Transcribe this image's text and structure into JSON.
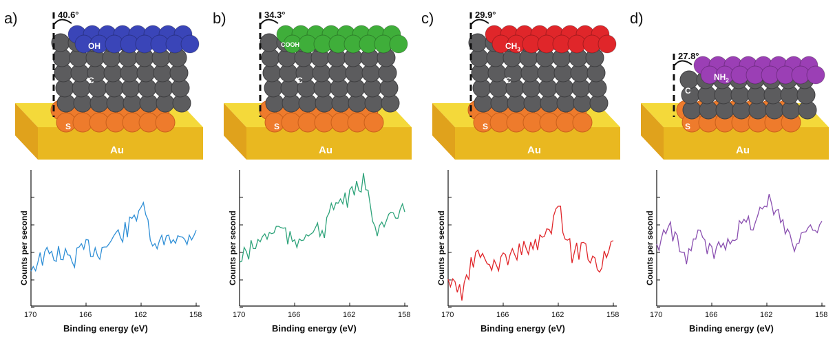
{
  "panels": [
    {
      "letter": "a)",
      "angle": "40.6°",
      "group": "OH",
      "carbon": "C",
      "sulfur": "S",
      "substrate": "Au",
      "color": "#3a45b8",
      "rows": 1,
      "ylabel": "Counts per second",
      "xlabel": "Binding energy (eV)",
      "ticks": [
        "170",
        "166",
        "162",
        "158"
      ]
    },
    {
      "letter": "b)",
      "angle": "34.3°",
      "group": "COOH",
      "carbon": "C",
      "sulfur": "S",
      "substrate": "Au",
      "color": "#3fae3a",
      "rows": 1,
      "ylabel": "Counts per second",
      "xlabel": "Binding energy (eV)",
      "ticks": [
        "170",
        "166",
        "162",
        "158"
      ]
    },
    {
      "letter": "c)",
      "angle": "29.9°",
      "group": "CH",
      "group_sub": "3",
      "carbon": "C",
      "sulfur": "S",
      "substrate": "Au",
      "color": "#e0262a",
      "rows": 1,
      "ylabel": "Counts per second",
      "xlabel": "Binding energy (eV)",
      "ticks": [
        "170",
        "166",
        "162",
        "158"
      ]
    },
    {
      "letter": "d)",
      "angle": "27.8°",
      "group": "NH",
      "group_sub": "2",
      "carbon": "C",
      "sulfur": "S",
      "substrate": "Au",
      "color": "#9b3fb5",
      "rows": 1,
      "ylabel": "Counts per second",
      "xlabel": "Binding energy (eV)",
      "ticks": [
        "170",
        "166",
        "162",
        "158"
      ]
    }
  ],
  "chart_data": [
    {
      "type": "line",
      "xlabel": "Binding energy (eV)",
      "ylabel": "Counts per second",
      "xlim": [
        170,
        158
      ],
      "color": "#2f8fd6",
      "x": [
        170,
        169,
        168,
        167,
        166,
        165,
        164,
        163,
        162,
        161,
        160,
        159,
        158
      ],
      "values": [
        0.3,
        0.38,
        0.4,
        0.35,
        0.45,
        0.42,
        0.52,
        0.58,
        0.78,
        0.42,
        0.55,
        0.5,
        0.58
      ]
    },
    {
      "type": "line",
      "xlabel": "Binding energy (eV)",
      "ylabel": "Counts per second",
      "xlim": [
        170,
        158
      ],
      "color": "#2ea37a",
      "x": [
        170,
        169,
        168,
        167,
        166,
        165,
        164,
        163,
        162,
        161,
        160,
        159,
        158
      ],
      "values": [
        0.35,
        0.45,
        0.55,
        0.6,
        0.45,
        0.6,
        0.55,
        0.8,
        0.82,
        0.95,
        0.6,
        0.65,
        0.72
      ]
    },
    {
      "type": "line",
      "xlabel": "Binding energy (eV)",
      "ylabel": "Counts per second",
      "xlim": [
        170,
        158
      ],
      "color": "#e0262a",
      "x": [
        170,
        169,
        168,
        167,
        166,
        165,
        164,
        163,
        162,
        161,
        160,
        159,
        158
      ],
      "values": [
        0.2,
        0.1,
        0.4,
        0.3,
        0.35,
        0.42,
        0.45,
        0.5,
        0.75,
        0.4,
        0.45,
        0.3,
        0.5
      ]
    },
    {
      "type": "line",
      "xlabel": "Binding energy (eV)",
      "ylabel": "Counts per second",
      "xlim": [
        170,
        158
      ],
      "color": "#8a4fb0",
      "x": [
        170,
        169,
        168,
        167,
        166,
        165,
        164,
        163,
        162,
        161,
        160,
        159,
        158
      ],
      "values": [
        0.45,
        0.6,
        0.35,
        0.55,
        0.4,
        0.5,
        0.6,
        0.65,
        0.8,
        0.7,
        0.45,
        0.6,
        0.65
      ]
    }
  ]
}
